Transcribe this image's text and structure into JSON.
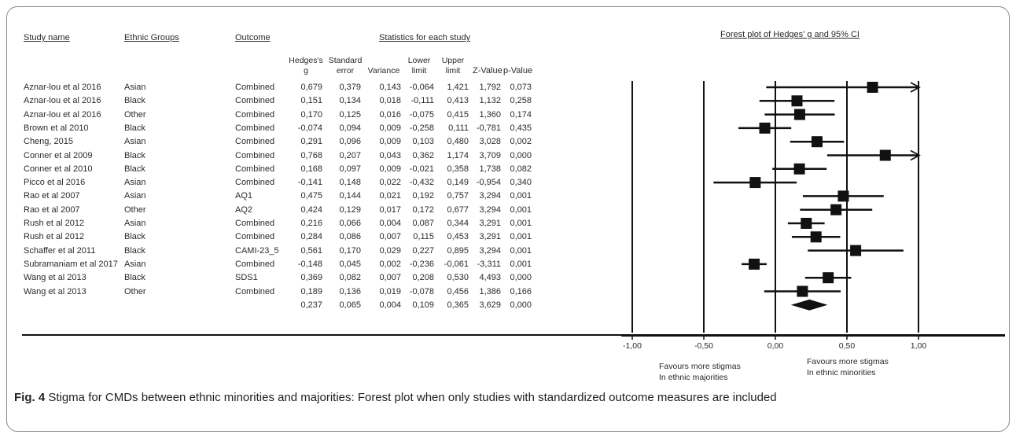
{
  "headers": {
    "study_name": "Study name",
    "ethnic_groups": "Ethnic Groups",
    "outcome": "Outcome",
    "stats_group": "Statistics for each study",
    "forest_title": "Forest plot of Hedges' g and 95% CI",
    "hedges": [
      "Hedges's",
      "g"
    ],
    "se": [
      "Standard",
      "error"
    ],
    "variance": "Variance",
    "lower": [
      "Lower",
      "limit"
    ],
    "upper": [
      "Upper",
      "limit"
    ],
    "z": "Z-Value",
    "p": "p-Value"
  },
  "rows": [
    {
      "study": "Aznar-lou et al 2016",
      "group": "Asian",
      "outcome": "Combined",
      "g": "0,679",
      "se": "0,379",
      "var": "0,143",
      "lo": "-0,064",
      "hi": "1,421",
      "z": "1,792",
      "p": "0,073"
    },
    {
      "study": "Aznar-lou et al 2016",
      "group": "Black",
      "outcome": "Combined",
      "g": "0,151",
      "se": "0,134",
      "var": "0,018",
      "lo": "-0,111",
      "hi": "0,413",
      "z": "1,132",
      "p": "0,258"
    },
    {
      "study": "Aznar-lou et al 2016",
      "group": "Other",
      "outcome": "Combined",
      "g": "0,170",
      "se": "0,125",
      "var": "0,016",
      "lo": "-0,075",
      "hi": "0,415",
      "z": "1,360",
      "p": "0,174"
    },
    {
      "study": "Brown et al 2010",
      "group": "Black",
      "outcome": "Combined",
      "g": "-0,074",
      "se": "0,094",
      "var": "0,009",
      "lo": "-0,258",
      "hi": "0,111",
      "z": "-0,781",
      "p": "0,435"
    },
    {
      "study": "Cheng, 2015",
      "group": "Asian",
      "outcome": "Combined",
      "g": "0,291",
      "se": "0,096",
      "var": "0,009",
      "lo": "0,103",
      "hi": "0,480",
      "z": "3,028",
      "p": "0,002"
    },
    {
      "study": "Conner et al 2009",
      "group": "Black",
      "outcome": "Combined",
      "g": "0,768",
      "se": "0,207",
      "var": "0,043",
      "lo": "0,362",
      "hi": "1,174",
      "z": "3,709",
      "p": "0,000"
    },
    {
      "study": "Conner et al 2010",
      "group": "Black",
      "outcome": "Combined",
      "g": "0,168",
      "se": "0,097",
      "var": "0,009",
      "lo": "-0,021",
      "hi": "0,358",
      "z": "1,738",
      "p": "0,082"
    },
    {
      "study": "Picco et al 2016",
      "group": "Asian",
      "outcome": "Combined",
      "g": "-0,141",
      "se": "0,148",
      "var": "0,022",
      "lo": "-0,432",
      "hi": "0,149",
      "z": "-0,954",
      "p": "0,340"
    },
    {
      "study": "Rao et al 2007",
      "group": "Asian",
      "outcome": "AQ1",
      "g": "0,475",
      "se": "0,144",
      "var": "0,021",
      "lo": "0,192",
      "hi": "0,757",
      "z": "3,294",
      "p": "0,001"
    },
    {
      "study": "Rao et al 2007",
      "group": "Other",
      "outcome": "AQ2",
      "g": "0,424",
      "se": "0,129",
      "var": "0,017",
      "lo": "0,172",
      "hi": "0,677",
      "z": "3,294",
      "p": "0,001"
    },
    {
      "study": "Rush et al 2012",
      "group": "Asian",
      "outcome": "Combined",
      "g": "0,216",
      "se": "0,066",
      "var": "0,004",
      "lo": "0,087",
      "hi": "0,344",
      "z": "3,291",
      "p": "0,001"
    },
    {
      "study": "Rush et al 2012",
      "group": "Black",
      "outcome": "Combined",
      "g": "0,284",
      "se": "0,086",
      "var": "0,007",
      "lo": "0,115",
      "hi": "0,453",
      "z": "3,291",
      "p": "0,001"
    },
    {
      "study": "Schaffer et al 2011",
      "group": "Black",
      "outcome": "CAMI-23_5",
      "g": "0,561",
      "se": "0,170",
      "var": "0,029",
      "lo": "0,227",
      "hi": "0,895",
      "z": "3,294",
      "p": "0,001"
    },
    {
      "study": "Subramaniam et al 2017",
      "group": "Asian",
      "outcome": "Combined",
      "g": "-0,148",
      "se": "0,045",
      "var": "0,002",
      "lo": "-0,236",
      "hi": "-0,061",
      "z": "-3,311",
      "p": "0,001"
    },
    {
      "study": "Wang et al 2013",
      "group": "Black",
      "outcome": "SDS1",
      "g": "0,369",
      "se": "0,082",
      "var": "0,007",
      "lo": "0,208",
      "hi": "0,530",
      "z": "4,493",
      "p": "0,000"
    },
    {
      "study": "Wang et al 2013",
      "group": "Other",
      "outcome": "Combined",
      "g": "0,189",
      "se": "0,136",
      "var": "0,019",
      "lo": "-0,078",
      "hi": "0,456",
      "z": "1,386",
      "p": "0,166"
    }
  ],
  "pooled": {
    "g": "0,237",
    "se": "0,065",
    "var": "0,004",
    "lo": "0,109",
    "hi": "0,365",
    "z": "3,629",
    "p": "0,000"
  },
  "axis": {
    "ticks": [
      "-1,00",
      "-0,50",
      "0,00",
      "0,50",
      "1,00"
    ],
    "favours_left": [
      "Favours more stigmas",
      "In ethnic majorities"
    ],
    "favours_right": [
      "Favours more stigmas",
      "In ethnic minorities"
    ]
  },
  "caption": {
    "label": "Fig. 4",
    "text": " Stigma for CMDs between ethnic minorities and majorities: Forest plot when only studies with standardized outcome measures are included"
  },
  "chart_data": {
    "type": "forest",
    "title": "Forest plot of Hedges' g and 95% CI",
    "xlim": [
      -1.0,
      1.0
    ],
    "xticks": [
      -1.0,
      -0.5,
      0.0,
      0.5,
      1.0
    ],
    "points": [
      {
        "g": 0.679,
        "lo": -0.064,
        "hi": 1.421
      },
      {
        "g": 0.151,
        "lo": -0.111,
        "hi": 0.413
      },
      {
        "g": 0.17,
        "lo": -0.075,
        "hi": 0.415
      },
      {
        "g": -0.074,
        "lo": -0.258,
        "hi": 0.111
      },
      {
        "g": 0.291,
        "lo": 0.103,
        "hi": 0.48
      },
      {
        "g": 0.768,
        "lo": 0.362,
        "hi": 1.174
      },
      {
        "g": 0.168,
        "lo": -0.021,
        "hi": 0.358
      },
      {
        "g": -0.141,
        "lo": -0.432,
        "hi": 0.149
      },
      {
        "g": 0.475,
        "lo": 0.192,
        "hi": 0.757
      },
      {
        "g": 0.424,
        "lo": 0.172,
        "hi": 0.677
      },
      {
        "g": 0.216,
        "lo": 0.087,
        "hi": 0.344
      },
      {
        "g": 0.284,
        "lo": 0.115,
        "hi": 0.453
      },
      {
        "g": 0.561,
        "lo": 0.227,
        "hi": 0.895
      },
      {
        "g": -0.148,
        "lo": -0.236,
        "hi": -0.061
      },
      {
        "g": 0.369,
        "lo": 0.208,
        "hi": 0.53
      },
      {
        "g": 0.189,
        "lo": -0.078,
        "hi": 0.456
      }
    ],
    "pooled": {
      "g": 0.237,
      "lo": 0.109,
      "hi": 0.365
    }
  }
}
